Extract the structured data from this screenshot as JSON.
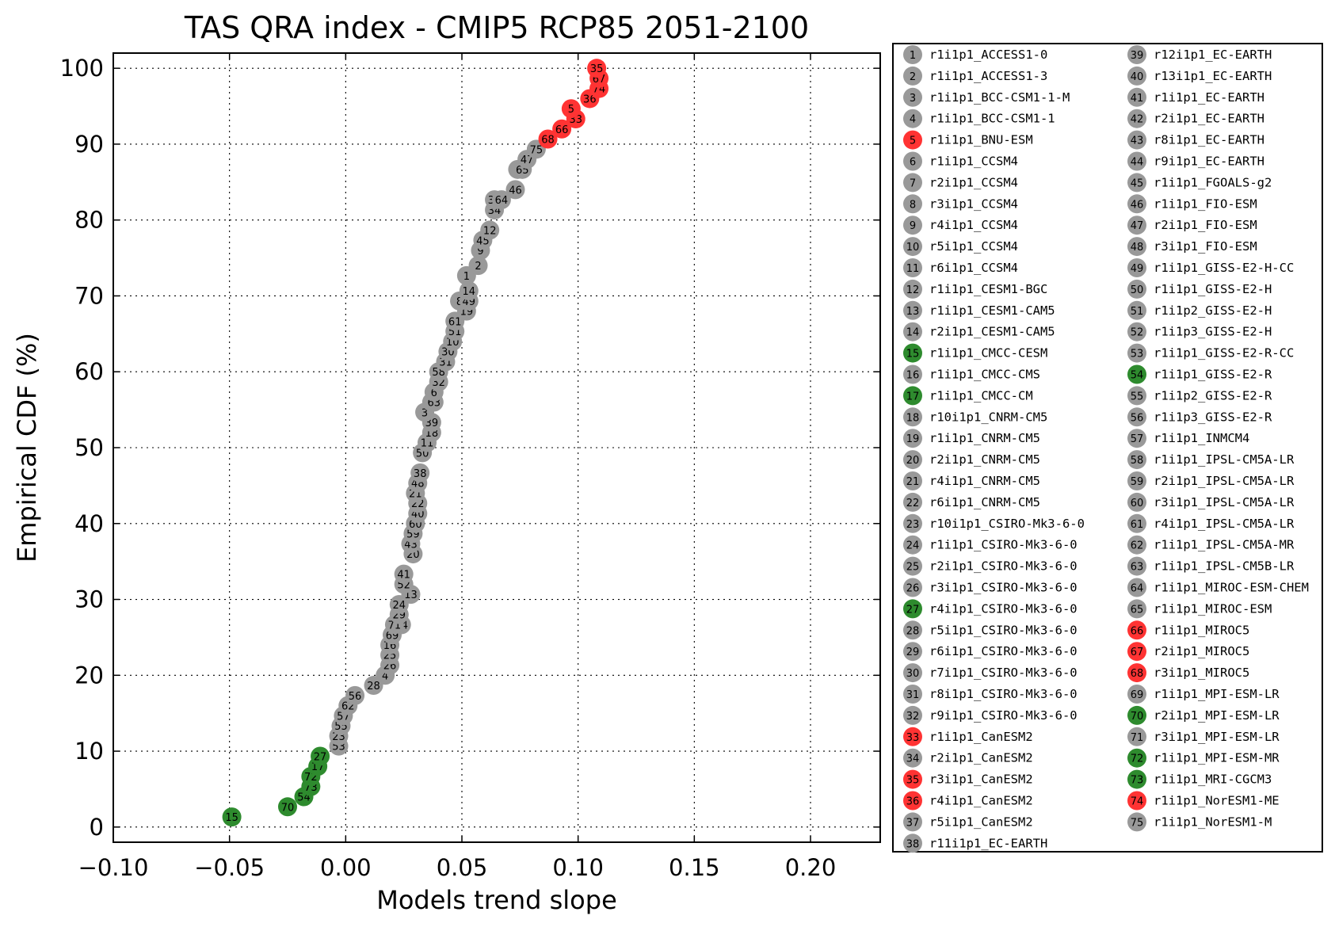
{
  "chart_data": {
    "type": "scatter",
    "title": "TAS QRA index - CMIP5 RCP85 2051-2100",
    "xlabel": "Models trend slope",
    "ylabel": "Empirical CDF (%)",
    "xlim": [
      -0.1,
      0.23
    ],
    "ylim": [
      -2,
      102
    ],
    "xticks": [
      -0.1,
      -0.05,
      0.0,
      0.05,
      0.1,
      0.15,
      0.2
    ],
    "xtick_labels": [
      "−0.10",
      "−0.05",
      "0.00",
      "0.05",
      "0.10",
      "0.15",
      "0.20"
    ],
    "yticks": [
      0,
      10,
      20,
      30,
      40,
      50,
      60,
      70,
      80,
      90,
      100
    ],
    "ytick_labels": [
      "0",
      "10",
      "20",
      "30",
      "40",
      "50",
      "60",
      "70",
      "80",
      "90",
      "100"
    ],
    "grid": true,
    "legend_position": "right",
    "colors": {
      "low": "#2e8b2e",
      "mid": "#999999",
      "high": "#ff3333"
    },
    "models": [
      {
        "id": 1,
        "name": "r1i1p1_ACCESS1-0",
        "group": "mid",
        "x": 0.052,
        "y": 72.67
      },
      {
        "id": 2,
        "name": "r1i1p1_ACCESS1-3",
        "group": "mid",
        "x": 0.057,
        "y": 74.0
      },
      {
        "id": 3,
        "name": "r1i1p1_BCC-CSM1-1-M",
        "group": "mid",
        "x": 0.034,
        "y": 54.67
      },
      {
        "id": 4,
        "name": "r1i1p1_BCC-CSM1-1",
        "group": "mid",
        "x": 0.017,
        "y": 20.0
      },
      {
        "id": 5,
        "name": "r1i1p1_BNU-ESM",
        "group": "high",
        "x": 0.097,
        "y": 94.67
      },
      {
        "id": 6,
        "name": "r1i1p1_CCSM4",
        "group": "mid",
        "x": 0.038,
        "y": 57.33
      },
      {
        "id": 7,
        "name": "r2i1p1_CCSM4",
        "group": "mid",
        "x": 0.074,
        "y": 86.67
      },
      {
        "id": 8,
        "name": "r3i1p1_CCSM4",
        "group": "mid",
        "x": 0.049,
        "y": 69.33
      },
      {
        "id": 9,
        "name": "r4i1p1_CCSM4",
        "group": "mid",
        "x": 0.058,
        "y": 76.0
      },
      {
        "id": 10,
        "name": "r5i1p1_CCSM4",
        "group": "mid",
        "x": 0.046,
        "y": 64.0
      },
      {
        "id": 11,
        "name": "r6i1p1_CCSM4",
        "group": "mid",
        "x": 0.035,
        "y": 50.67
      },
      {
        "id": 12,
        "name": "r1i1p1_CESM1-BGC",
        "group": "mid",
        "x": 0.062,
        "y": 78.67
      },
      {
        "id": 13,
        "name": "r1i1p1_CESM1-CAM5",
        "group": "mid",
        "x": 0.028,
        "y": 30.67
      },
      {
        "id": 14,
        "name": "r2i1p1_CESM1-CAM5",
        "group": "mid",
        "x": 0.053,
        "y": 70.67
      },
      {
        "id": 15,
        "name": "r1i1p1_CMCC-CESM",
        "group": "low",
        "x": -0.049,
        "y": 1.33
      },
      {
        "id": 16,
        "name": "r1i1p1_CMCC-CMS",
        "group": "mid",
        "x": 0.019,
        "y": 24.0
      },
      {
        "id": 17,
        "name": "r1i1p1_CMCC-CM",
        "group": "low",
        "x": -0.012,
        "y": 8.0
      },
      {
        "id": 18,
        "name": "r10i1p1_CNRM-CM5",
        "group": "mid",
        "x": 0.037,
        "y": 52.0
      },
      {
        "id": 19,
        "name": "r1i1p1_CNRM-CM5",
        "group": "mid",
        "x": 0.052,
        "y": 68.0
      },
      {
        "id": 20,
        "name": "r2i1p1_CNRM-CM5",
        "group": "mid",
        "x": 0.029,
        "y": 36.0
      },
      {
        "id": 21,
        "name": "r4i1p1_CNRM-CM5",
        "group": "mid",
        "x": 0.03,
        "y": 44.0
      },
      {
        "id": 22,
        "name": "r6i1p1_CNRM-CM5",
        "group": "mid",
        "x": 0.031,
        "y": 42.67
      },
      {
        "id": 23,
        "name": "r10i1p1_CSIRO-Mk3-6-0",
        "group": "mid",
        "x": -0.003,
        "y": 12.0
      },
      {
        "id": 24,
        "name": "r1i1p1_CSIRO-Mk3-6-0",
        "group": "mid",
        "x": 0.023,
        "y": 29.33
      },
      {
        "id": 25,
        "name": "r2i1p1_CSIRO-Mk3-6-0",
        "group": "mid",
        "x": 0.019,
        "y": 22.67
      },
      {
        "id": 26,
        "name": "r3i1p1_CSIRO-Mk3-6-0",
        "group": "mid",
        "x": 0.019,
        "y": 21.33
      },
      {
        "id": 27,
        "name": "r4i1p1_CSIRO-Mk3-6-0",
        "group": "low",
        "x": -0.011,
        "y": 9.33
      },
      {
        "id": 28,
        "name": "r5i1p1_CSIRO-Mk3-6-0",
        "group": "mid",
        "x": 0.012,
        "y": 18.67
      },
      {
        "id": 29,
        "name": "r6i1p1_CSIRO-Mk3-6-0",
        "group": "mid",
        "x": 0.023,
        "y": 28.0
      },
      {
        "id": 30,
        "name": "r7i1p1_CSIRO-Mk3-6-0",
        "group": "mid",
        "x": 0.044,
        "y": 62.67
      },
      {
        "id": 31,
        "name": "r8i1p1_CSIRO-Mk3-6-0",
        "group": "mid",
        "x": 0.043,
        "y": 61.33
      },
      {
        "id": 32,
        "name": "r9i1p1_CSIRO-Mk3-6-0",
        "group": "mid",
        "x": 0.04,
        "y": 58.67
      },
      {
        "id": 33,
        "name": "r1i1p1_CanESM2",
        "group": "high",
        "x": 0.099,
        "y": 93.33
      },
      {
        "id": 34,
        "name": "r2i1p1_CanESM2",
        "group": "mid",
        "x": 0.064,
        "y": 81.33
      },
      {
        "id": 35,
        "name": "r3i1p1_CanESM2",
        "group": "high",
        "x": 0.108,
        "y": 100.0
      },
      {
        "id": 36,
        "name": "r4i1p1_CanESM2",
        "group": "high",
        "x": 0.105,
        "y": 96.0
      },
      {
        "id": 37,
        "name": "r5i1p1_CanESM2",
        "group": "mid",
        "x": 0.064,
        "y": 82.67
      },
      {
        "id": 38,
        "name": "r11i1p1_EC-EARTH",
        "group": "mid",
        "x": 0.032,
        "y": 46.67
      },
      {
        "id": 39,
        "name": "r12i1p1_EC-EARTH",
        "group": "mid",
        "x": 0.037,
        "y": 53.33
      },
      {
        "id": 40,
        "name": "r13i1p1_EC-EARTH",
        "group": "mid",
        "x": 0.031,
        "y": 41.33
      },
      {
        "id": 41,
        "name": "r1i1p1_EC-EARTH",
        "group": "mid",
        "x": 0.025,
        "y": 33.33
      },
      {
        "id": 42,
        "name": "r2i1p1_EC-EARTH",
        "group": "mid",
        "x": 0.037,
        "y": 56.0
      },
      {
        "id": 43,
        "name": "r8i1p1_EC-EARTH",
        "group": "mid",
        "x": 0.028,
        "y": 37.33
      },
      {
        "id": 44,
        "name": "r9i1p1_EC-EARTH",
        "group": "mid",
        "x": 0.024,
        "y": 26.67
      },
      {
        "id": 45,
        "name": "r1i1p1_FGOALS-g2",
        "group": "mid",
        "x": 0.059,
        "y": 77.33
      },
      {
        "id": 46,
        "name": "r1i1p1_FIO-ESM",
        "group": "mid",
        "x": 0.073,
        "y": 84.0
      },
      {
        "id": 47,
        "name": "r2i1p1_FIO-ESM",
        "group": "mid",
        "x": 0.078,
        "y": 88.0
      },
      {
        "id": 48,
        "name": "r3i1p1_FIO-ESM",
        "group": "mid",
        "x": 0.031,
        "y": 45.33
      },
      {
        "id": 49,
        "name": "r1i1p1_GISS-E2-H-CC",
        "group": "mid",
        "x": 0.053,
        "y": 69.33
      },
      {
        "id": 50,
        "name": "r1i1p1_GISS-E2-H",
        "group": "mid",
        "x": 0.033,
        "y": 49.33
      },
      {
        "id": 51,
        "name": "r1i1p2_GISS-E2-H",
        "group": "mid",
        "x": 0.047,
        "y": 65.33
      },
      {
        "id": 52,
        "name": "r1i1p3_GISS-E2-H",
        "group": "mid",
        "x": 0.025,
        "y": 32.0
      },
      {
        "id": 53,
        "name": "r1i1p1_GISS-E2-R-CC",
        "group": "mid",
        "x": -0.003,
        "y": 10.67
      },
      {
        "id": 54,
        "name": "r1i1p1_GISS-E2-R",
        "group": "low",
        "x": -0.018,
        "y": 4.0
      },
      {
        "id": 55,
        "name": "r1i1p2_GISS-E2-R",
        "group": "mid",
        "x": -0.002,
        "y": 13.33
      },
      {
        "id": 56,
        "name": "r1i1p3_GISS-E2-R",
        "group": "mid",
        "x": 0.004,
        "y": 17.33
      },
      {
        "id": 57,
        "name": "r1i1p1_INMCM4",
        "group": "mid",
        "x": -0.001,
        "y": 14.67
      },
      {
        "id": 58,
        "name": "r1i1p1_IPSL-CM5A-LR",
        "group": "mid",
        "x": 0.04,
        "y": 60.0
      },
      {
        "id": 59,
        "name": "r2i1p1_IPSL-CM5A-LR",
        "group": "mid",
        "x": 0.029,
        "y": 38.67
      },
      {
        "id": 60,
        "name": "r3i1p1_IPSL-CM5A-LR",
        "group": "mid",
        "x": 0.03,
        "y": 40.0
      },
      {
        "id": 61,
        "name": "r4i1p1_IPSL-CM5A-LR",
        "group": "mid",
        "x": 0.047,
        "y": 66.67
      },
      {
        "id": 62,
        "name": "r1i1p1_IPSL-CM5A-MR",
        "group": "mid",
        "x": 0.001,
        "y": 16.0
      },
      {
        "id": 63,
        "name": "r1i1p1_IPSL-CM5B-LR",
        "group": "mid",
        "x": 0.038,
        "y": 56.0
      },
      {
        "id": 64,
        "name": "r1i1p1_MIROC-ESM-CHEM",
        "group": "mid",
        "x": 0.067,
        "y": 82.67
      },
      {
        "id": 65,
        "name": "r1i1p1_MIROC-ESM",
        "group": "mid",
        "x": 0.076,
        "y": 86.67
      },
      {
        "id": 66,
        "name": "r1i1p1_MIROC5",
        "group": "high",
        "x": 0.093,
        "y": 92.0
      },
      {
        "id": 67,
        "name": "r2i1p1_MIROC5",
        "group": "high",
        "x": 0.109,
        "y": 98.67
      },
      {
        "id": 68,
        "name": "r3i1p1_MIROC5",
        "group": "high",
        "x": 0.087,
        "y": 90.67
      },
      {
        "id": 69,
        "name": "r1i1p1_MPI-ESM-LR",
        "group": "mid",
        "x": 0.02,
        "y": 25.33
      },
      {
        "id": 70,
        "name": "r2i1p1_MPI-ESM-LR",
        "group": "low",
        "x": -0.025,
        "y": 2.67
      },
      {
        "id": 71,
        "name": "r3i1p1_MPI-ESM-LR",
        "group": "mid",
        "x": 0.021,
        "y": 26.67
      },
      {
        "id": 72,
        "name": "r1i1p1_MPI-ESM-MR",
        "group": "low",
        "x": -0.015,
        "y": 6.67
      },
      {
        "id": 73,
        "name": "r1i1p1_MRI-CGCM3",
        "group": "low",
        "x": -0.015,
        "y": 5.33
      },
      {
        "id": 74,
        "name": "r1i1p1_NorESM1-ME",
        "group": "high",
        "x": 0.109,
        "y": 97.33
      },
      {
        "id": 75,
        "name": "r1i1p1_NorESM1-M",
        "group": "mid",
        "x": 0.082,
        "y": 89.33
      }
    ]
  }
}
